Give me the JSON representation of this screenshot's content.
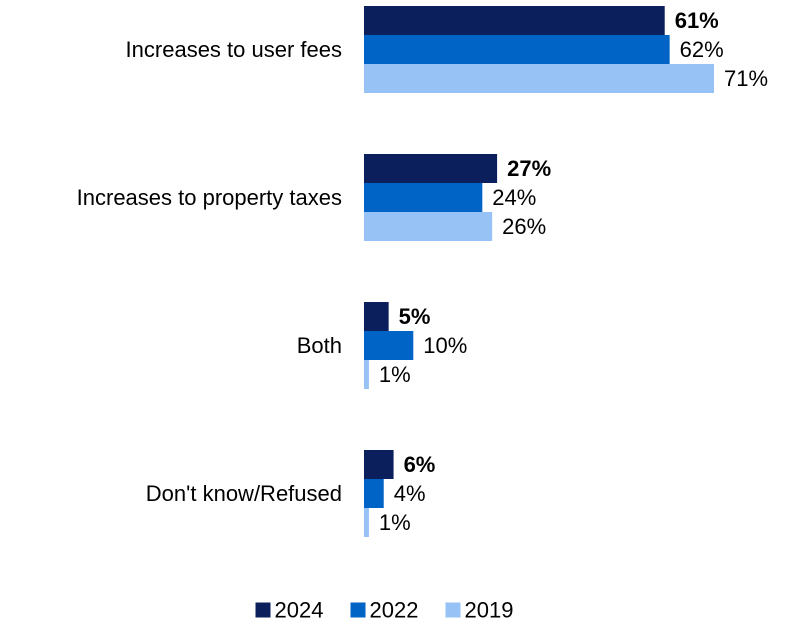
{
  "chart_data": {
    "type": "bar",
    "orientation": "horizontal",
    "categories": [
      "Increases to user fees",
      "Increases to property taxes",
      "Both",
      "Don't know/Refused"
    ],
    "series": [
      {
        "name": "2024",
        "values": [
          61,
          27,
          5,
          6
        ],
        "color": "#0b1f5c",
        "label_bold": true
      },
      {
        "name": "2022",
        "values": [
          62,
          24,
          10,
          4
        ],
        "color": "#0063c6",
        "label_bold": false
      },
      {
        "name": "2019",
        "values": [
          71,
          26,
          1,
          1
        ],
        "color": "#97c2f5",
        "label_bold": false
      }
    ],
    "value_suffix": "%",
    "xlim": [
      0,
      71
    ],
    "grid": false,
    "legend_position": "bottom-center",
    "title": "",
    "xlabel": "",
    "ylabel": ""
  }
}
